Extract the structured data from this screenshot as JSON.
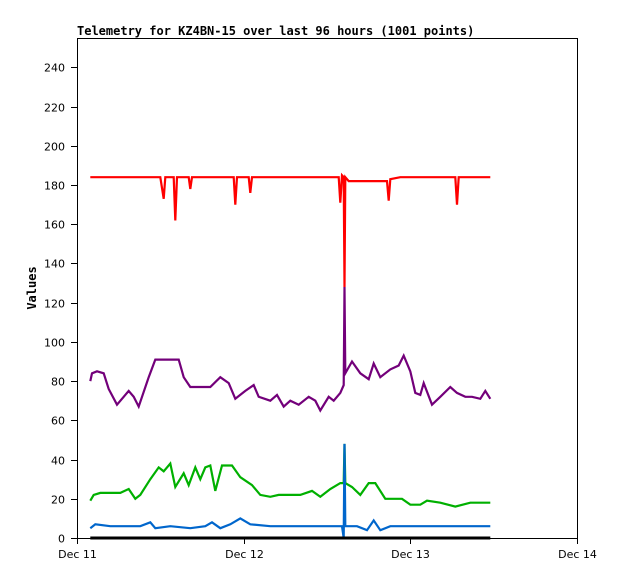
{
  "chart_data": {
    "type": "line",
    "title": "Telemetry for KZ4BN-15 over last 96 hours (1001 points)",
    "xlabel": "",
    "ylabel": "Values",
    "xlim": [
      0,
      3
    ],
    "ylim": [
      0,
      255
    ],
    "x_unit": "days since Dec 11",
    "xticks": [
      {
        "value": 0,
        "label": "Dec 11"
      },
      {
        "value": 1,
        "label": "Dec 12"
      },
      {
        "value": 2,
        "label": "Dec 13"
      },
      {
        "value": 3,
        "label": "Dec 14"
      }
    ],
    "yticks": [
      0,
      20,
      40,
      60,
      80,
      100,
      120,
      140,
      160,
      180,
      200,
      220,
      240
    ],
    "grid": false,
    "series": [
      {
        "name": "red",
        "color": "#ff0000",
        "points": [
          [
            0.08,
            184
          ],
          [
            0.5,
            184
          ],
          [
            0.52,
            173
          ],
          [
            0.53,
            184
          ],
          [
            0.58,
            184
          ],
          [
            0.59,
            162
          ],
          [
            0.6,
            184
          ],
          [
            0.67,
            184
          ],
          [
            0.68,
            178
          ],
          [
            0.69,
            184
          ],
          [
            0.94,
            184
          ],
          [
            0.95,
            170
          ],
          [
            0.96,
            184
          ],
          [
            1.03,
            184
          ],
          [
            1.04,
            176
          ],
          [
            1.05,
            184
          ],
          [
            1.57,
            184
          ],
          [
            1.58,
            171
          ],
          [
            1.59,
            185
          ],
          [
            1.6,
            184
          ],
          [
            1.605,
            128
          ],
          [
            1.61,
            184
          ],
          [
            1.63,
            182
          ],
          [
            1.8,
            182
          ],
          [
            1.86,
            182
          ],
          [
            1.87,
            172
          ],
          [
            1.88,
            183
          ],
          [
            1.94,
            184
          ],
          [
            2.27,
            184
          ],
          [
            2.28,
            170
          ],
          [
            2.29,
            184
          ],
          [
            2.48,
            184
          ]
        ]
      },
      {
        "name": "purple",
        "color": "#73007a",
        "points": [
          [
            0.08,
            80
          ],
          [
            0.09,
            84
          ],
          [
            0.12,
            85
          ],
          [
            0.16,
            84
          ],
          [
            0.19,
            76
          ],
          [
            0.24,
            68
          ],
          [
            0.28,
            72
          ],
          [
            0.31,
            75
          ],
          [
            0.34,
            72
          ],
          [
            0.37,
            67
          ],
          [
            0.43,
            82
          ],
          [
            0.47,
            91
          ],
          [
            0.53,
            91
          ],
          [
            0.61,
            91
          ],
          [
            0.64,
            82
          ],
          [
            0.68,
            77
          ],
          [
            0.74,
            77
          ],
          [
            0.8,
            77
          ],
          [
            0.86,
            82
          ],
          [
            0.91,
            79
          ],
          [
            0.95,
            71
          ],
          [
            1.01,
            75
          ],
          [
            1.06,
            78
          ],
          [
            1.09,
            72
          ],
          [
            1.16,
            70
          ],
          [
            1.2,
            73
          ],
          [
            1.24,
            67
          ],
          [
            1.28,
            70
          ],
          [
            1.33,
            68
          ],
          [
            1.39,
            72
          ],
          [
            1.43,
            70
          ],
          [
            1.46,
            65
          ],
          [
            1.51,
            72
          ],
          [
            1.54,
            70
          ],
          [
            1.58,
            74
          ],
          [
            1.6,
            78
          ],
          [
            1.605,
            128
          ],
          [
            1.61,
            84
          ],
          [
            1.65,
            90
          ],
          [
            1.7,
            84
          ],
          [
            1.75,
            81
          ],
          [
            1.78,
            89
          ],
          [
            1.82,
            82
          ],
          [
            1.88,
            86
          ],
          [
            1.93,
            88
          ],
          [
            1.96,
            93
          ],
          [
            2.0,
            85
          ],
          [
            2.03,
            74
          ],
          [
            2.06,
            73
          ],
          [
            2.08,
            79
          ],
          [
            2.13,
            68
          ],
          [
            2.18,
            72
          ],
          [
            2.24,
            77
          ],
          [
            2.28,
            74
          ],
          [
            2.33,
            72
          ],
          [
            2.37,
            72
          ],
          [
            2.42,
            71
          ],
          [
            2.45,
            75
          ],
          [
            2.48,
            71
          ]
        ]
      },
      {
        "name": "green",
        "color": "#00b000",
        "points": [
          [
            0.08,
            19
          ],
          [
            0.1,
            22
          ],
          [
            0.14,
            23
          ],
          [
            0.2,
            23
          ],
          [
            0.26,
            23
          ],
          [
            0.31,
            25
          ],
          [
            0.35,
            20
          ],
          [
            0.38,
            22
          ],
          [
            0.44,
            30
          ],
          [
            0.49,
            36
          ],
          [
            0.52,
            34
          ],
          [
            0.56,
            38
          ],
          [
            0.59,
            26
          ],
          [
            0.64,
            33
          ],
          [
            0.67,
            27
          ],
          [
            0.71,
            36
          ],
          [
            0.74,
            30
          ],
          [
            0.77,
            36
          ],
          [
            0.8,
            37
          ],
          [
            0.83,
            24
          ],
          [
            0.87,
            37
          ],
          [
            0.93,
            37
          ],
          [
            0.98,
            31
          ],
          [
            1.05,
            27
          ],
          [
            1.1,
            22
          ],
          [
            1.16,
            21
          ],
          [
            1.21,
            22
          ],
          [
            1.28,
            22
          ],
          [
            1.34,
            22
          ],
          [
            1.41,
            24
          ],
          [
            1.46,
            21
          ],
          [
            1.52,
            25
          ],
          [
            1.58,
            28
          ],
          [
            1.6,
            28
          ],
          [
            1.605,
            48
          ],
          [
            1.61,
            28
          ],
          [
            1.65,
            26
          ],
          [
            1.7,
            22
          ],
          [
            1.75,
            28
          ],
          [
            1.79,
            28
          ],
          [
            1.85,
            20
          ],
          [
            1.91,
            20
          ],
          [
            1.95,
            20
          ],
          [
            2.0,
            17
          ],
          [
            2.06,
            17
          ],
          [
            2.1,
            19
          ],
          [
            2.18,
            18
          ],
          [
            2.27,
            16
          ],
          [
            2.36,
            18
          ],
          [
            2.48,
            18
          ]
        ]
      },
      {
        "name": "blue",
        "color": "#0066cc",
        "points": [
          [
            0.08,
            5
          ],
          [
            0.11,
            7
          ],
          [
            0.2,
            6
          ],
          [
            0.26,
            6
          ],
          [
            0.38,
            6
          ],
          [
            0.44,
            8
          ],
          [
            0.47,
            5
          ],
          [
            0.56,
            6
          ],
          [
            0.68,
            5
          ],
          [
            0.77,
            6
          ],
          [
            0.81,
            8
          ],
          [
            0.86,
            5
          ],
          [
            0.92,
            7
          ],
          [
            0.98,
            10
          ],
          [
            1.04,
            7
          ],
          [
            1.16,
            6
          ],
          [
            1.34,
            6
          ],
          [
            1.55,
            6
          ],
          [
            1.59,
            6
          ],
          [
            1.6,
            0
          ],
          [
            1.605,
            48
          ],
          [
            1.61,
            6
          ],
          [
            1.68,
            6
          ],
          [
            1.74,
            4
          ],
          [
            1.78,
            9
          ],
          [
            1.82,
            4
          ],
          [
            1.88,
            6
          ],
          [
            2.06,
            6
          ],
          [
            2.48,
            6
          ]
        ]
      },
      {
        "name": "black",
        "color": "#000000",
        "points": [
          [
            0.08,
            0
          ],
          [
            2.48,
            0
          ]
        ]
      }
    ]
  }
}
